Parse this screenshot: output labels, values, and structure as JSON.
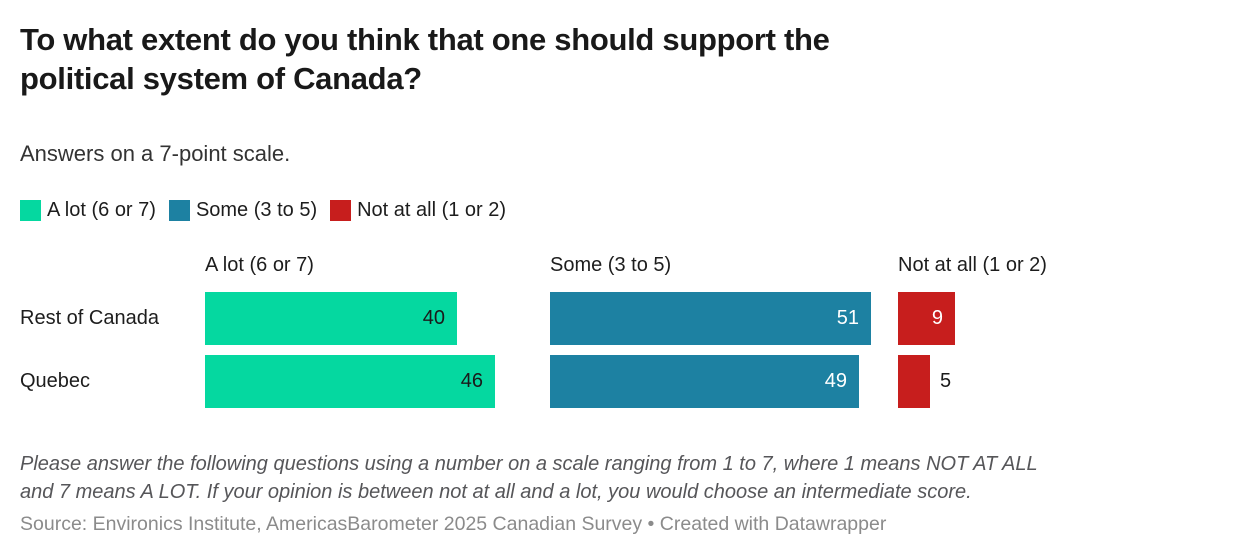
{
  "header": {
    "title": "To what extent do you think that one should support the political system of Canada?",
    "title_line1": "To what extent do you think that one should support the",
    "title_line2": "political system of Canada?",
    "subtitle": "Answers on a 7-point scale."
  },
  "legend": {
    "items": [
      {
        "label": "A lot (6 or 7)",
        "color": "#05d8a0"
      },
      {
        "label": "Some (3 to 5)",
        "color": "#1d81a2"
      },
      {
        "label": "Not at all (1 or 2)",
        "color": "#c71e1d"
      }
    ]
  },
  "chart_data": {
    "type": "bar",
    "orientation": "horizontal",
    "layout": "split-bars",
    "title": "To what extent do you think that one should support the political system of Canada?",
    "subtitle": "Answers on a 7-point scale.",
    "categories": [
      "Rest of Canada",
      "Quebec"
    ],
    "column_headers": [
      "A lot (6 or 7)",
      "Some (3 to 5)",
      "Not at all (1 or 2)"
    ],
    "series": [
      {
        "name": "A lot (6 or 7)",
        "color": "#05d8a0",
        "value_label_color": "#1a1a1a",
        "values": [
          40,
          46
        ]
      },
      {
        "name": "Some (3 to 5)",
        "color": "#1d81a2",
        "value_label_color": "#ffffff",
        "values": [
          51,
          49
        ]
      },
      {
        "name": "Not at all (1 or 2)",
        "color": "#c71e1d",
        "value_label_color": "#ffffff",
        "values": [
          9,
          5
        ]
      }
    ],
    "xlim": [
      0,
      52
    ],
    "grid": false,
    "legend_position": "top",
    "value_unit": "percent"
  },
  "footer": {
    "note": "Please answer the following questions using a number on a scale ranging from 1 to 7, where 1 means NOT AT ALL and 7 means A LOT. If your opinion is between not at all and a lot, you would choose an intermediate score.",
    "note_line1": "Please answer the following questions using a number on a scale ranging from 1 to 7, where 1 means NOT AT ALL",
    "note_line2": "and 7 means A LOT. If your opinion is between not at all and a lot, you would choose an intermediate score.",
    "source": "Source: Environics Institute, AmericasBarometer 2025 Canadian Survey • Created with Datawrapper"
  }
}
